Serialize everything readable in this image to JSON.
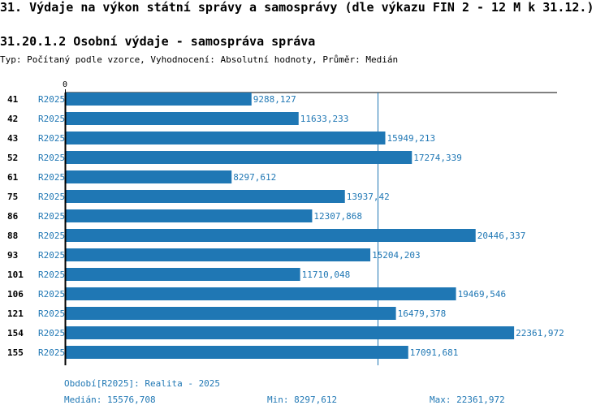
{
  "header": {
    "title": "31. Výdaje na výkon státní správy a samosprávy (dle výkazu FIN 2 - 12 M k 31.12.)",
    "subtitle": "31.20.1.2 Osobní výdaje - samospráva správa",
    "type_line": "Typ: Počítaný podle vzorce, Vyhodnocení: Absolutní hodnoty, Průměr: Medián"
  },
  "colors": {
    "bar": "#1f77b4",
    "text_blue": "#1f77b4",
    "axis": "#000000"
  },
  "chart_data": {
    "type": "bar",
    "orientation": "horizontal",
    "axis_zero_label": "0",
    "xlim": [
      0,
      24500
    ],
    "median": 15576.708,
    "categories": [
      "41",
      "42",
      "43",
      "52",
      "61",
      "75",
      "86",
      "88",
      "93",
      "101",
      "106",
      "121",
      "154",
      "155"
    ],
    "series_labels": [
      "R2025",
      "R2025",
      "R2025",
      "R2025",
      "R2025",
      "R2025",
      "R2025",
      "R2025",
      "R2025",
      "R2025",
      "R2025",
      "R2025",
      "R2025",
      "R2025"
    ],
    "values": [
      9288.127,
      11633.233,
      15949.213,
      17274.339,
      8297.612,
      13937.42,
      12307.868,
      20446.337,
      15204.203,
      11710.048,
      19469.546,
      16479.378,
      22361.972,
      17091.681
    ],
    "value_labels": [
      "9288,127",
      "11633,233",
      "15949,213",
      "17274,339",
      "8297,612",
      "13937,42",
      "12307,868",
      "20446,337",
      "15204,203",
      "11710,048",
      "19469,546",
      "16479,378",
      "22361,972",
      "17091,681"
    ]
  },
  "footer": {
    "period": "Období[R2025]: Realita - 2025",
    "median": "Medián: 15576,708",
    "min": "Min: 8297,612",
    "max": "Max: 22361,972"
  }
}
